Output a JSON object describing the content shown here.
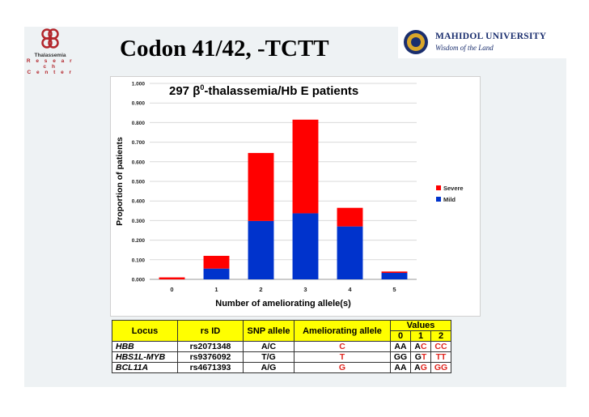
{
  "slide": {
    "title": "Codon 41/42, -TCTT"
  },
  "logo_left": {
    "line1": "Thalassemia",
    "line2": "R e s e a r c h",
    "line3": "C e n t e r"
  },
  "logo_right": {
    "university": "MAHIDOL UNIVERSITY",
    "motto": "Wisdom of the Land"
  },
  "colors": {
    "severe": "#ff0000",
    "mild": "#0033cc",
    "table_header": "#ffff00",
    "ameliorating_text": "#e0261f"
  },
  "chart_data": {
    "type": "bar",
    "stacked": true,
    "title_prefix": "297 ",
    "title_beta": "β",
    "title_sup": "0",
    "title_suffix": "-thalassemia/Hb E patients",
    "xlabel": "Number of ameliorating allele(s)",
    "ylabel": "Proportion of patients",
    "ylim": [
      0,
      1.0
    ],
    "yticks": [
      "0.000",
      "0.100",
      "0.200",
      "0.300",
      "0.400",
      "0.500",
      "0.600",
      "0.700",
      "0.800",
      "0.900",
      "1.000"
    ],
    "categories": [
      "0",
      "1",
      "2",
      "3",
      "4",
      "5"
    ],
    "grid": true,
    "legend_position": "right",
    "series": [
      {
        "name": "Mild",
        "color": "#0033cc",
        "values": [
          0.0,
          0.055,
          0.298,
          0.337,
          0.27,
          0.033
        ]
      },
      {
        "name": "Severe",
        "color": "#ff0000",
        "values": [
          0.01,
          0.065,
          0.347,
          0.478,
          0.095,
          0.007
        ]
      }
    ],
    "legend": [
      "Severe",
      "Mild"
    ]
  },
  "table": {
    "headers": {
      "locus": "Locus",
      "rsid": "rs ID",
      "snp": "SNP allele",
      "amel": "Ameliorating allele",
      "values": "Values",
      "v0": "0",
      "v1": "1",
      "v2": "2"
    },
    "rows": [
      {
        "locus": "HBB",
        "rsid": "rs2071348",
        "snp": "A/C",
        "amel": "C",
        "v0": "AA",
        "v1a": "A",
        "v1b": "C",
        "v2": "CC"
      },
      {
        "locus": "HBS1L-MYB",
        "rsid": "rs9376092",
        "snp": "T/G",
        "amel": "T",
        "v0": "GG",
        "v1a": "G",
        "v1b": "T",
        "v2": "TT"
      },
      {
        "locus": "BCL11A",
        "rsid": "rs4671393",
        "snp": "A/G",
        "amel": "G",
        "v0": "AA",
        "v1a": "A",
        "v1b": "G",
        "v2": "GG"
      }
    ]
  }
}
